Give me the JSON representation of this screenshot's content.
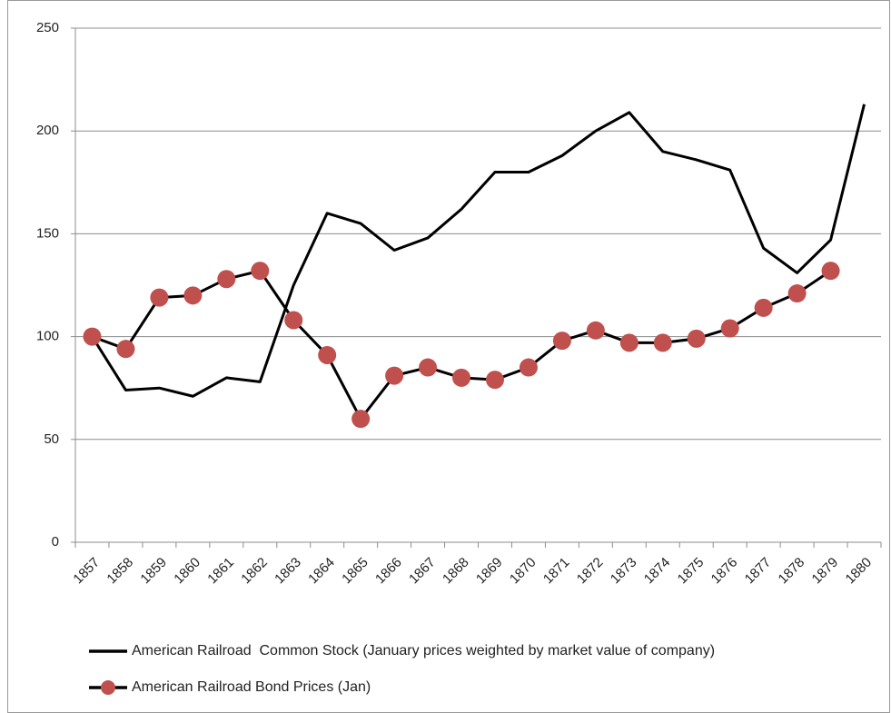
{
  "chart_data": {
    "type": "line",
    "categories": [
      "1857",
      "1858",
      "1859",
      "1860",
      "1861",
      "1862",
      "1863",
      "1864",
      "1865",
      "1866",
      "1867",
      "1868",
      "1869",
      "1870",
      "1871",
      "1872",
      "1873",
      "1874",
      "1875",
      "1876",
      "1877",
      "1878",
      "1879",
      "1880"
    ],
    "series": [
      {
        "name": "American Railroad  Common Stock (January prices weighted by market value of company)",
        "color": "#000000",
        "values": [
          100,
          74,
          75,
          71,
          80,
          78,
          125,
          160,
          155,
          142,
          148,
          162,
          180,
          180,
          188,
          200,
          209,
          190,
          186,
          181,
          143,
          131,
          147,
          213
        ]
      },
      {
        "name": "American Railroad Bond Prices (Jan)",
        "color": "#000000",
        "marker_color": "#c0504d",
        "values": [
          100,
          94,
          119,
          120,
          128,
          132,
          108,
          91,
          60,
          81,
          85,
          80,
          79,
          85,
          98,
          103,
          97,
          97,
          99,
          104,
          114,
          121,
          132,
          null
        ]
      }
    ],
    "ylim": [
      0,
      250
    ],
    "yticks": [
      0,
      50,
      100,
      150,
      200,
      250
    ],
    "grid": true
  }
}
